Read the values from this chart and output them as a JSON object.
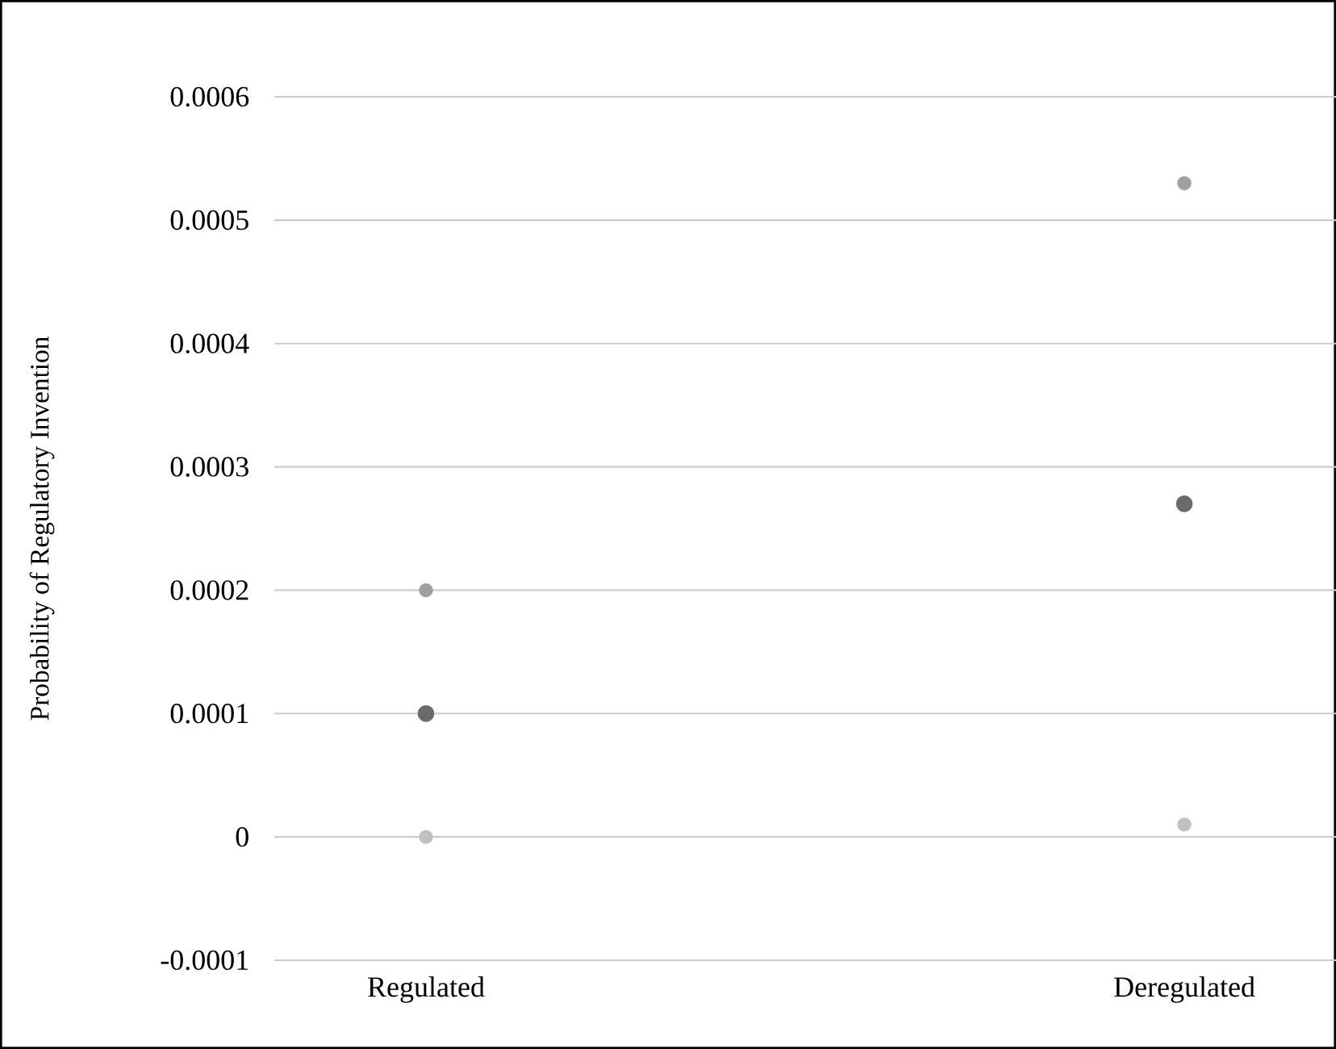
{
  "chart_data": {
    "type": "scatter",
    "ylabel": "Probability of Regulatory Invention",
    "categories": [
      "Regulated",
      "Deregulated"
    ],
    "series": [
      {
        "color": "#a0a0a2",
        "values": [
          0.0002,
          0.00053
        ]
      },
      {
        "color": "#6a6a6c",
        "values": [
          0.0001,
          0.00027
        ]
      },
      {
        "color": "#c0c0c2",
        "values": [
          0.0,
          1e-05
        ]
      }
    ],
    "ylim": [
      -0.0001,
      0.0006
    ],
    "yticks": [
      -0.0001,
      0,
      0.0001,
      0.0002,
      0.0003,
      0.0004,
      0.0005,
      0.0006
    ],
    "grid": "y",
    "marker": "circle"
  }
}
